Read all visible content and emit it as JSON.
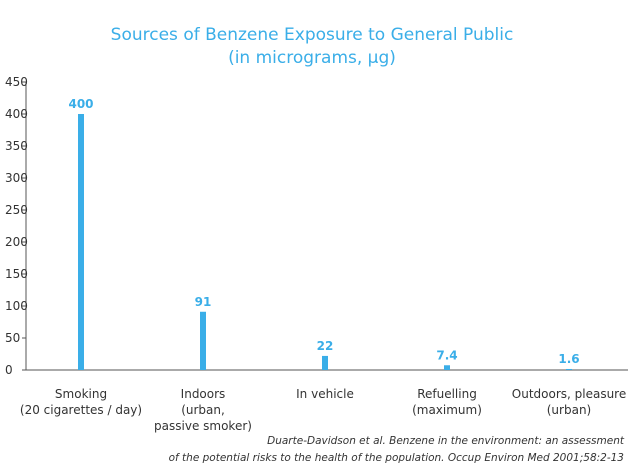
{
  "chart_data": {
    "type": "bar",
    "title_lines": [
      "Sources of Benzene Exposure to General Public",
      "(in micrograms, µg)"
    ],
    "categories": [
      [
        "Smoking",
        "(20 cigarettes / day)"
      ],
      [
        "Indoors",
        "(urban,",
        "passive smoker)"
      ],
      [
        "In vehicle"
      ],
      [
        "Refuelling",
        "(maximum)"
      ],
      [
        "Outdoors, pleasure",
        "(urban)"
      ]
    ],
    "values": [
      400,
      91,
      22,
      7.4,
      1.6
    ],
    "value_labels": [
      "400",
      "91",
      "22",
      "7.4",
      "1.6"
    ],
    "ylim": [
      0,
      450
    ],
    "yticks": [
      0,
      50,
      100,
      150,
      200,
      250,
      300,
      350,
      400,
      450
    ],
    "grid": false,
    "bar_color": "#3aaee8",
    "source_lines": [
      "Duarte-Davidson et al. Benzene in the environment: an assessment",
      "of the potential risks to the health of the population. Occup Environ Med 2001;58:2-13"
    ]
  }
}
